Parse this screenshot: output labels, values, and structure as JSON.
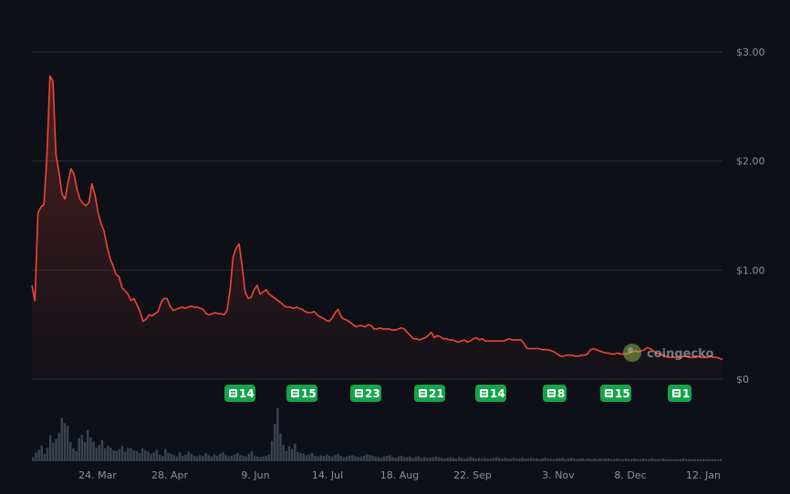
{
  "colors": {
    "background": "#0d1117",
    "grid": "#262c34",
    "price_line": "#f04438",
    "volume": "#3a424d",
    "badge": "#16a34a",
    "axis_text": "#8a9099"
  },
  "watermark": {
    "text": "coingecko"
  },
  "chart_data": [
    {
      "type": "line",
      "title": "",
      "xlabel": "",
      "ylabel": "",
      "x_ticks": [
        "24. Mar",
        "28. Apr",
        "9. Jun",
        "14. Jul",
        "18. Aug",
        "22. Sep",
        "3. Nov",
        "8. Dec",
        "12. Jan"
      ],
      "y_ticks": [
        "$3.00",
        "$2.00",
        "$1.00",
        "$0"
      ],
      "ylim": [
        0,
        3
      ],
      "grid": true,
      "y_axis_side": "right",
      "series": [
        {
          "values": [
            0.86,
            0.72,
            1.52,
            1.58,
            1.6,
            2.05,
            2.78,
            2.73,
            2.06,
            1.9,
            1.7,
            1.65,
            1.8,
            1.93,
            1.88,
            1.74,
            1.65,
            1.61,
            1.59,
            1.62,
            1.79,
            1.69,
            1.53,
            1.43,
            1.36,
            1.22,
            1.11,
            1.04,
            0.96,
            0.94,
            0.84,
            0.81,
            0.78,
            0.72,
            0.74,
            0.68,
            0.62,
            0.53,
            0.55,
            0.59,
            0.58,
            0.6,
            0.62,
            0.7,
            0.74,
            0.74,
            0.67,
            0.63,
            0.64,
            0.65,
            0.66,
            0.65,
            0.66,
            0.67,
            0.66,
            0.66,
            0.65,
            0.64,
            0.6,
            0.59,
            0.6,
            0.61,
            0.6,
            0.6,
            0.59,
            0.63,
            0.82,
            1.12,
            1.2,
            1.24,
            1.04,
            0.8,
            0.74,
            0.75,
            0.82,
            0.86,
            0.78,
            0.8,
            0.82,
            0.78,
            0.76,
            0.74,
            0.72,
            0.7,
            0.67,
            0.66,
            0.66,
            0.65,
            0.66,
            0.65,
            0.64,
            0.62,
            0.61,
            0.61,
            0.62,
            0.59,
            0.57,
            0.56,
            0.54,
            0.53,
            0.56,
            0.61,
            0.64,
            0.57,
            0.55,
            0.54,
            0.52,
            0.5,
            0.48,
            0.49,
            0.49,
            0.48,
            0.5,
            0.49,
            0.46,
            0.46,
            0.47,
            0.46,
            0.46,
            0.46,
            0.45,
            0.45,
            0.46,
            0.47,
            0.46,
            0.43,
            0.4,
            0.37,
            0.37,
            0.36,
            0.37,
            0.38,
            0.4,
            0.43,
            0.38,
            0.4,
            0.39,
            0.37,
            0.37,
            0.36,
            0.36,
            0.35,
            0.34,
            0.35,
            0.36,
            0.34,
            0.35,
            0.37,
            0.38,
            0.36,
            0.37,
            0.35,
            0.35,
            0.35,
            0.35,
            0.35,
            0.35,
            0.35,
            0.36,
            0.37,
            0.36,
            0.36,
            0.36,
            0.36,
            0.32,
            0.28,
            0.28,
            0.28,
            0.28,
            0.28,
            0.27,
            0.27,
            0.27,
            0.26,
            0.25,
            0.23,
            0.21,
            0.21,
            0.22,
            0.22,
            0.22,
            0.21,
            0.21,
            0.22,
            0.22,
            0.23,
            0.27,
            0.28,
            0.27,
            0.26,
            0.25,
            0.24,
            0.24,
            0.23,
            0.23,
            0.24,
            0.23,
            0.23,
            0.23,
            0.24,
            0.25,
            0.26,
            0.25,
            0.26,
            0.27,
            0.29,
            0.28,
            0.26,
            0.24,
            0.23,
            0.22,
            0.21,
            0.2,
            0.2,
            0.2,
            0.2,
            0.2,
            0.21,
            0.21,
            0.2,
            0.2,
            0.2,
            0.21,
            0.2,
            0.2,
            0.2,
            0.21,
            0.2,
            0.2,
            0.19,
            0.18
          ]
        }
      ],
      "volume": {
        "values": [
          6,
          13,
          17,
          23,
          11,
          20,
          38,
          27,
          33,
          42,
          64,
          56,
          52,
          28,
          19,
          15,
          34,
          39,
          28,
          46,
          35,
          29,
          20,
          24,
          31,
          19,
          23,
          20,
          16,
          15,
          18,
          22,
          14,
          20,
          19,
          16,
          15,
          12,
          19,
          16,
          14,
          11,
          13,
          17,
          10,
          8,
          18,
          12,
          11,
          9,
          7,
          13,
          8,
          10,
          14,
          11,
          8,
          7,
          9,
          8,
          12,
          9,
          7,
          10,
          8,
          11,
          13,
          9,
          7,
          8,
          10,
          12,
          9,
          8,
          7,
          11,
          15,
          8,
          7,
          6,
          7,
          8,
          10,
          30,
          55,
          78,
          41,
          24,
          15,
          22,
          18,
          26,
          14,
          12,
          11,
          9,
          10,
          12,
          8,
          7,
          9,
          8,
          10,
          8,
          7,
          9,
          11,
          8,
          6,
          7,
          8,
          9,
          7,
          6,
          7,
          8,
          10,
          9,
          8,
          7,
          6,
          5,
          7,
          8,
          9,
          6,
          5,
          7,
          8,
          6,
          6,
          7,
          5,
          6,
          7,
          5,
          6,
          5,
          5,
          6,
          7,
          6,
          5,
          4,
          5,
          6,
          5,
          4,
          6,
          5,
          4,
          5,
          6,
          5,
          4,
          5,
          4,
          5,
          4,
          4,
          5,
          6,
          5,
          4,
          5,
          4,
          4,
          5,
          4,
          4,
          5,
          4,
          4,
          5,
          4,
          4,
          3,
          4,
          5,
          4,
          4,
          3,
          4,
          4,
          5,
          3,
          4,
          5,
          4,
          3,
          4,
          4,
          3,
          4,
          3,
          4,
          3,
          4,
          3,
          4,
          4,
          3,
          3,
          4,
          3,
          3,
          4,
          3,
          3,
          4,
          3,
          3,
          4,
          3,
          3,
          4,
          3,
          3,
          3,
          4,
          3,
          3,
          3,
          3,
          3,
          3,
          4,
          3,
          3,
          3,
          3,
          3,
          3,
          3,
          3,
          3,
          3,
          3,
          3,
          3
        ]
      },
      "event_badges": [
        14,
        15,
        23,
        21,
        14,
        8,
        15,
        1
      ]
    }
  ]
}
